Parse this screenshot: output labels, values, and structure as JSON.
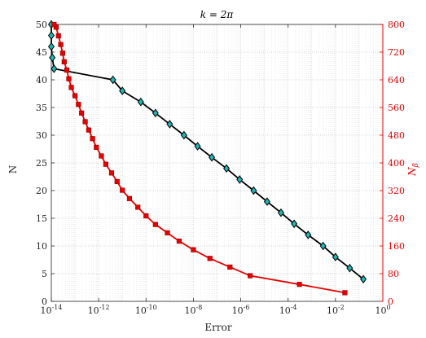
{
  "chart_data": {
    "type": "line",
    "title": "k = 2π",
    "xlabel": "Error",
    "ylabel_left": "N",
    "ylabel_right": "N",
    "ylabel_right_sub": "β",
    "x_scale": "log",
    "xlim": [
      1e-14,
      1
    ],
    "ylim_left": [
      0,
      50
    ],
    "ylim_right": [
      0,
      800
    ],
    "grid": true,
    "x_ticks": [
      {
        "exp": -14,
        "base": "10",
        "sup": "-14"
      },
      {
        "exp": -12,
        "base": "10",
        "sup": "-12"
      },
      {
        "exp": -10,
        "base": "10",
        "sup": "-10"
      },
      {
        "exp": -8,
        "base": "10",
        "sup": "-8"
      },
      {
        "exp": -6,
        "base": "10",
        "sup": "-6"
      },
      {
        "exp": -4,
        "base": "10",
        "sup": "-4"
      },
      {
        "exp": -2,
        "base": "10",
        "sup": "-2"
      },
      {
        "exp": 0,
        "base": "10",
        "sup": "0"
      }
    ],
    "y_left_ticks": [
      "0",
      "5",
      "10",
      "15",
      "20",
      "25",
      "30",
      "35",
      "40",
      "45",
      "50"
    ],
    "y_right_ticks": [
      "0",
      "80",
      "160",
      "240",
      "320",
      "400",
      "480",
      "560",
      "640",
      "720",
      "800"
    ],
    "series": [
      {
        "axis": "left",
        "marker": "diamond",
        "line_color": "#000000",
        "marker_fill": "#1fb5b5",
        "marker_edge": "#000000",
        "points": [
          [
            0.15,
            4
          ],
          [
            0.04,
            6
          ],
          [
            0.01,
            8
          ],
          [
            0.003,
            10
          ],
          [
            0.0007,
            12
          ],
          [
            0.00018,
            14
          ],
          [
            5e-05,
            16
          ],
          [
            1.3e-05,
            18
          ],
          [
            3.5e-06,
            20
          ],
          [
            9e-07,
            22
          ],
          [
            2.5e-07,
            24
          ],
          [
            6e-08,
            26
          ],
          [
            1.5e-08,
            28
          ],
          [
            4e-09,
            30
          ],
          [
            1e-09,
            32
          ],
          [
            2.5e-10,
            34
          ],
          [
            6e-11,
            36
          ],
          [
            1e-11,
            38
          ],
          [
            4e-12,
            40
          ],
          [
            1.3e-14,
            42
          ],
          [
            1.1e-14,
            44
          ],
          [
            1e-14,
            46
          ],
          [
            1e-14,
            48
          ],
          [
            1e-14,
            50
          ]
        ]
      },
      {
        "axis": "right",
        "marker": "square",
        "line_color": "#e60000",
        "marker_fill": "#e60000",
        "marker_edge": "#990000",
        "points": [
          [
            0.025,
            25
          ],
          [
            0.0003,
            49
          ],
          [
            2.5e-06,
            74
          ],
          [
            3.5e-07,
            99
          ],
          [
            5e-08,
            124
          ],
          [
            1e-08,
            149
          ],
          [
            2.5e-09,
            174
          ],
          [
            8e-10,
            198
          ],
          [
            2.5e-10,
            222
          ],
          [
            1e-10,
            247
          ],
          [
            4.5e-11,
            272
          ],
          [
            2e-11,
            297
          ],
          [
            1e-11,
            321
          ],
          [
            6e-12,
            346
          ],
          [
            3.5e-12,
            371
          ],
          [
            2e-12,
            396
          ],
          [
            1.3e-12,
            420
          ],
          [
            8e-13,
            445
          ],
          [
            5.5e-13,
            470
          ],
          [
            3.8e-13,
            495
          ],
          [
            2.7e-13,
            519
          ],
          [
            1.9e-13,
            544
          ],
          [
            1.4e-13,
            569
          ],
          [
            1e-13,
            594
          ],
          [
            7e-14,
            618
          ],
          [
            5.5e-14,
            643
          ],
          [
            4.5e-14,
            668
          ],
          [
            3.5e-14,
            692
          ],
          [
            3e-14,
            717
          ],
          [
            2.5e-14,
            742
          ],
          [
            2e-14,
            767
          ],
          [
            1.6e-14,
            792
          ],
          [
            1.3e-14,
            800
          ]
        ]
      }
    ]
  }
}
